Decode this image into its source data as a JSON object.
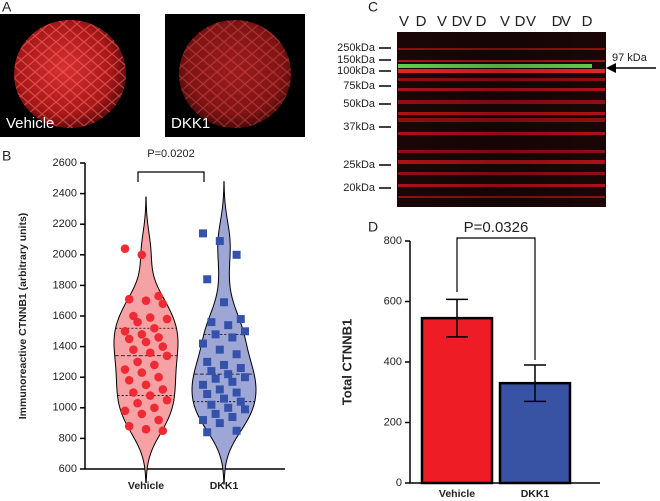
{
  "panels": {
    "a": "A",
    "b": "B",
    "c": "C",
    "d": "D"
  },
  "micrographs": {
    "labels": [
      "Vehicle",
      "DKK1"
    ]
  },
  "blot": {
    "lanes": [
      "V",
      "D",
      "V",
      "D",
      "V",
      "D",
      "V",
      "D",
      "V",
      "D",
      "V",
      "D"
    ],
    "markers": [
      "250kDa",
      "150kDa",
      "100kDa",
      "75kDa",
      "50kDa",
      "37kDa",
      "25kDa",
      "20kDa"
    ],
    "arrow_label": "97 kDa"
  },
  "chart_data": [
    {
      "type": "violin",
      "y_label": "Immunoreactive CTNNB1 (arbitrary units)",
      "annotation": "P=0.0202",
      "categories": [
        "Vehicle",
        "DKK1"
      ],
      "colors": [
        "#ee2a34",
        "#3552ab"
      ],
      "fill_colors": [
        "#f6a2a4",
        "#9ea6d6"
      ],
      "values": [
        [
          2040,
          2000,
          1730,
          1710,
          1700,
          1680,
          1600,
          1590,
          1580,
          1560,
          1520,
          1500,
          1480,
          1460,
          1450,
          1430,
          1400,
          1380,
          1360,
          1340,
          1300,
          1280,
          1250,
          1230,
          1200,
          1180,
          1150,
          1120,
          1100,
          1080,
          1050,
          1030,
          1000,
          980,
          960,
          920,
          880,
          860,
          850
        ],
        [
          2140,
          2090,
          2000,
          1840,
          1690,
          1580,
          1560,
          1540,
          1500,
          1480,
          1460,
          1420,
          1380,
          1350,
          1300,
          1280,
          1260,
          1240,
          1220,
          1200,
          1190,
          1170,
          1150,
          1120,
          1100,
          1090,
          1060,
          1040,
          1020,
          1000,
          990,
          960,
          940,
          920,
          900,
          850,
          840
        ]
      ],
      "ylim": [
        600,
        2600
      ],
      "yticks": [
        600,
        800,
        1000,
        1200,
        1400,
        1600,
        1800,
        2000,
        2200,
        2400,
        2600
      ]
    },
    {
      "type": "bar",
      "y_label": "Total CTNNB1",
      "annotation": "P=0.0326",
      "categories": [
        "Vehicle",
        "DKK1"
      ],
      "values": [
        545,
        330
      ],
      "errors": [
        62,
        60
      ],
      "colors": [
        "#ee1c25",
        "#3953a4"
      ],
      "ylim": [
        0,
        800
      ],
      "yticks": [
        0,
        200,
        400,
        600,
        800
      ]
    }
  ]
}
